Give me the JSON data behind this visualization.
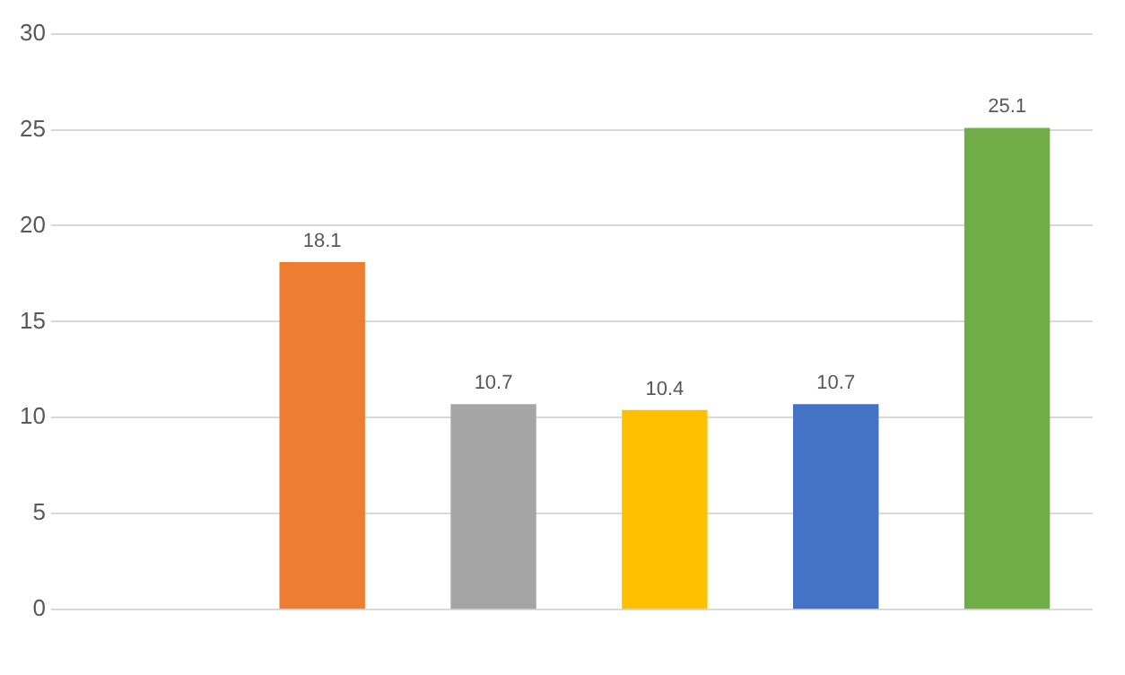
{
  "chart_data": {
    "type": "bar",
    "categories": [
      null,
      null,
      null,
      null,
      null,
      null
    ],
    "values": [
      null,
      18.1,
      10.7,
      10.4,
      10.7,
      25.1
    ],
    "colors": [
      "#ed7d31",
      "#ed7d31",
      "#a5a5a5",
      "#ffc000",
      "#4472c4",
      "#70ad47"
    ],
    "ylim": [
      0,
      30
    ],
    "yticks": [
      0,
      5,
      10,
      15,
      20,
      25,
      30
    ],
    "grid": "y",
    "data_labels": true
  }
}
